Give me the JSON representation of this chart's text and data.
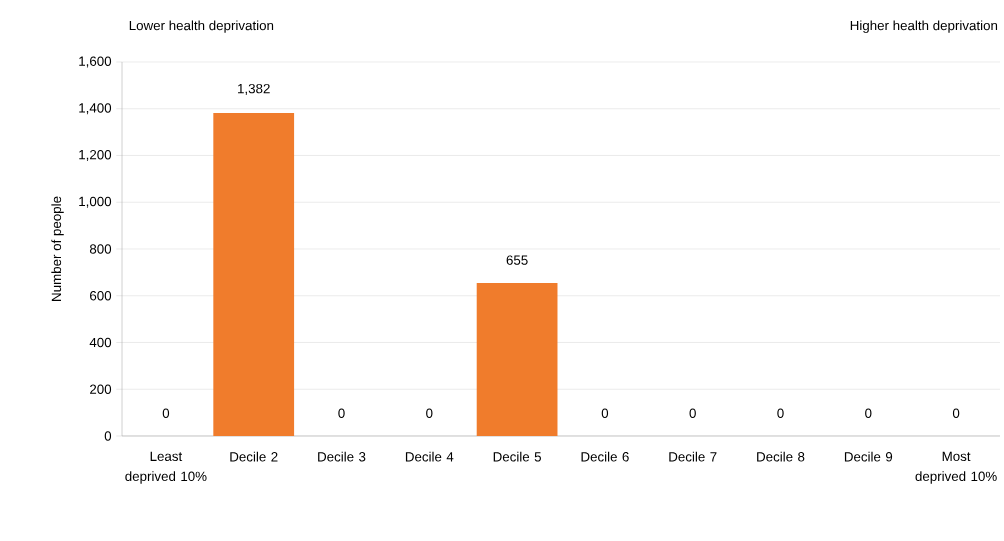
{
  "chart_data": {
    "type": "bar",
    "annotations": [
      "Lower health deprivation",
      "Higher health deprivation"
    ],
    "ylabel": "Number of people",
    "categories": [
      "Least deprived 10%",
      "Decile 2",
      "Decile 3",
      "Decile 4",
      "Decile 5",
      "Decile 6",
      "Decile 7",
      "Decile 8",
      "Decile 9",
      "Most deprived 10%"
    ],
    "values": [
      0,
      1382,
      0,
      0,
      655,
      0,
      0,
      0,
      0,
      0
    ],
    "value_labels": [
      "0",
      "1,382",
      "0",
      "0",
      "655",
      "0",
      "0",
      "0",
      "0",
      "0"
    ],
    "color": "#f07c2c",
    "ylim": [
      0,
      1600
    ],
    "yticks": [
      0,
      200,
      400,
      600,
      800,
      {
        "value": 1000,
        "label": "1,000"
      },
      {
        "value": 1200,
        "label": "1,200"
      },
      {
        "value": 1400,
        "label": "1,400"
      },
      {
        "value": 1600,
        "label": "1,600"
      }
    ],
    "grid": "y"
  }
}
